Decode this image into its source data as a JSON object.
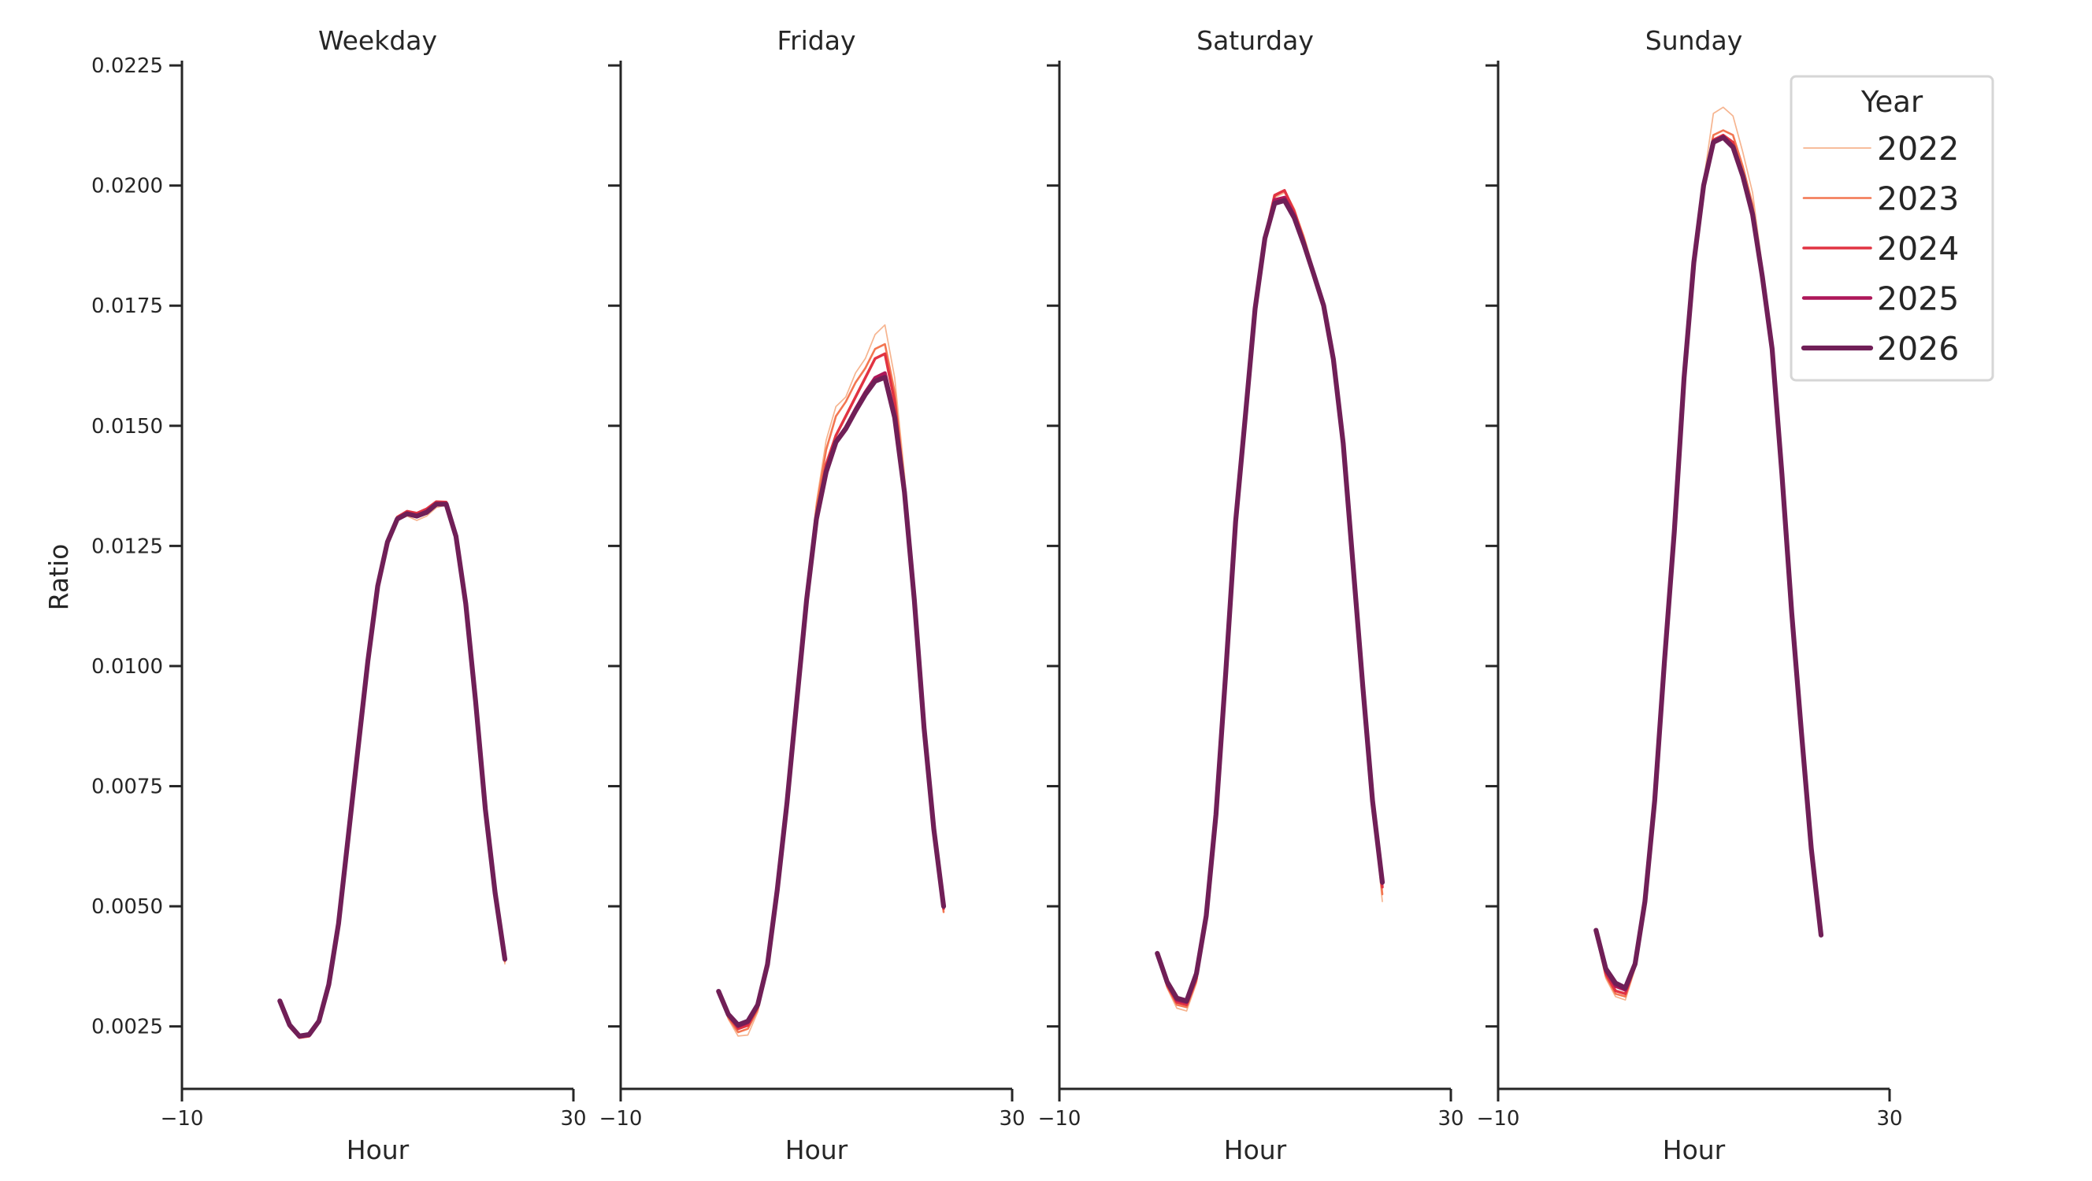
{
  "chart_data": {
    "type": "line",
    "ylabel": "Ratio",
    "xlabel": "Hour",
    "xlim": [
      -10,
      30
    ],
    "ylim": [
      0.0012,
      0.0226
    ],
    "xticks": [
      -10,
      30
    ],
    "xtick_labels": [
      "−10",
      "30"
    ],
    "yticks": [
      0.0025,
      0.005,
      0.0075,
      0.01,
      0.0125,
      0.015,
      0.0175,
      0.02,
      0.0225
    ],
    "ytick_labels": [
      "0.0025",
      "0.0050",
      "0.0075",
      "0.0100",
      "0.0125",
      "0.0150",
      "0.0175",
      "0.0200",
      "0.0225"
    ],
    "grid": false,
    "sharey": true,
    "legend": {
      "title": "Year",
      "placement": "top-right",
      "entries": [
        "2022",
        "2023",
        "2024",
        "2025",
        "2026"
      ]
    },
    "series_colors": {
      "2022": "#f6b48f",
      "2023": "#f37651",
      "2024": "#e13342",
      "2025": "#ad1759",
      "2026": "#701f57"
    },
    "x": [
      0,
      1,
      2,
      3,
      4,
      5,
      6,
      7,
      8,
      9,
      10,
      11,
      12,
      13,
      14,
      15,
      16,
      17,
      18,
      19,
      20,
      21,
      22,
      23
    ],
    "panels": [
      {
        "title": "Weekday",
        "series": [
          {
            "name": "2022",
            "values": [
              0.003,
              0.0025,
              0.00228,
              0.0023,
              0.0026,
              0.00338,
              0.00466,
              0.00648,
              0.0083,
              0.0101,
              0.01165,
              0.01257,
              0.01303,
              0.01312,
              0.01303,
              0.01312,
              0.0133,
              0.01335,
              0.01272,
              0.01132,
              0.0093,
              0.00705,
              0.0053,
              0.0038
            ]
          },
          {
            "name": "2023",
            "values": [
              0.003,
              0.00248,
              0.00226,
              0.00229,
              0.00259,
              0.00337,
              0.00465,
              0.00647,
              0.0083,
              0.01011,
              0.01166,
              0.01259,
              0.01308,
              0.0132,
              0.01316,
              0.01325,
              0.0134,
              0.0134,
              0.01273,
              0.01131,
              0.00928,
              0.00703,
              0.00528,
              0.00385
            ]
          },
          {
            "name": "2024",
            "values": [
              0.00302,
              0.0025,
              0.00227,
              0.0023,
              0.0026,
              0.00337,
              0.00465,
              0.00647,
              0.0083,
              0.01011,
              0.01166,
              0.0126,
              0.0131,
              0.01322,
              0.01318,
              0.01327,
              0.01342,
              0.01341,
              0.01272,
              0.01131,
              0.00928,
              0.00703,
              0.00528,
              0.00388
            ]
          },
          {
            "name": "2025",
            "values": [
              0.00303,
              0.00252,
              0.00229,
              0.00232,
              0.00261,
              0.00337,
              0.00464,
              0.00646,
              0.00829,
              0.01011,
              0.01166,
              0.01259,
              0.01307,
              0.01318,
              0.01313,
              0.01322,
              0.01338,
              0.01338,
              0.0127,
              0.0113,
              0.00927,
              0.00702,
              0.00528,
              0.0039
            ]
          },
          {
            "name": "2026",
            "values": [
              0.00303,
              0.00253,
              0.0023,
              0.00233,
              0.00261,
              0.00337,
              0.00464,
              0.00646,
              0.00829,
              0.01011,
              0.01166,
              0.01258,
              0.01306,
              0.01317,
              0.01312,
              0.0132,
              0.01337,
              0.01337,
              0.0127,
              0.0113,
              0.00927,
              0.00702,
              0.00528,
              0.0039
            ]
          }
        ]
      },
      {
        "title": "Friday",
        "series": [
          {
            "name": "2022",
            "values": [
              0.0032,
              0.00265,
              0.0023,
              0.00232,
              0.0028,
              0.0037,
              0.0053,
              0.00716,
              0.0093,
              0.0115,
              0.0134,
              0.0147,
              0.0154,
              0.0156,
              0.0161,
              0.0164,
              0.0169,
              0.0171,
              0.016,
              0.014,
              0.0115,
              0.00875,
              0.0066,
              0.0049
            ]
          },
          {
            "name": "2023",
            "values": [
              0.0032,
              0.00268,
              0.00238,
              0.00245,
              0.00285,
              0.00373,
              0.00532,
              0.00716,
              0.0093,
              0.01148,
              0.0133,
              0.0145,
              0.0152,
              0.0155,
              0.0159,
              0.0162,
              0.0166,
              0.0167,
              0.0157,
              0.0138,
              0.01145,
              0.00873,
              0.0066,
              0.00488
            ]
          },
          {
            "name": "2024",
            "values": [
              0.00322,
              0.00272,
              0.00245,
              0.00252,
              0.0029,
              0.00376,
              0.00533,
              0.00716,
              0.00928,
              0.01142,
              0.01315,
              0.0142,
              0.0148,
              0.0152,
              0.0156,
              0.016,
              0.0164,
              0.0165,
              0.0155,
              0.0137,
              0.0114,
              0.00872,
              0.0066,
              0.00495
            ]
          },
          {
            "name": "2025",
            "values": [
              0.00323,
              0.00274,
              0.0025,
              0.00258,
              0.00293,
              0.00378,
              0.00534,
              0.00716,
              0.00927,
              0.01139,
              0.01307,
              0.01406,
              0.01468,
              0.01497,
              0.01535,
              0.0157,
              0.016,
              0.0161,
              0.01522,
              0.01364,
              0.01139,
              0.00871,
              0.0066,
              0.005
            ]
          },
          {
            "name": "2026",
            "values": [
              0.00323,
              0.00275,
              0.00253,
              0.00261,
              0.00295,
              0.00379,
              0.00534,
              0.00716,
              0.00927,
              0.01138,
              0.01306,
              0.01404,
              0.01466,
              0.01494,
              0.01531,
              0.01565,
              0.01593,
              0.01601,
              0.01517,
              0.01362,
              0.01138,
              0.00871,
              0.0066,
              0.005
            ]
          }
        ]
      },
      {
        "title": "Saturday",
        "series": [
          {
            "name": "2022",
            "values": [
              0.004,
              0.0033,
              0.00288,
              0.00282,
              0.0034,
              0.0047,
              0.00688,
              0.00986,
              0.013,
              0.01522,
              0.01746,
              0.01893,
              0.01975,
              0.01985,
              0.0195,
              0.01895,
              0.01825,
              0.01752,
              0.01638,
              0.01462,
              0.0121,
              0.00955,
              0.00715,
              0.0051
            ]
          },
          {
            "name": "2023",
            "values": [
              0.004,
              0.00333,
              0.00295,
              0.0029,
              0.00345,
              0.00473,
              0.00689,
              0.00986,
              0.013,
              0.01521,
              0.01745,
              0.01893,
              0.01978,
              0.0199,
              0.0195,
              0.0189,
              0.0182,
              0.01751,
              0.01638,
              0.01463,
              0.0121,
              0.00956,
              0.00716,
              0.00525
            ]
          },
          {
            "name": "2024",
            "values": [
              0.00401,
              0.00337,
              0.003,
              0.00295,
              0.0035,
              0.00476,
              0.0069,
              0.00986,
              0.013,
              0.01521,
              0.01745,
              0.01892,
              0.0198,
              0.0199,
              0.01945,
              0.01885,
              0.01818,
              0.01751,
              0.01638,
              0.01463,
              0.01211,
              0.00957,
              0.00718,
              0.0054
            ]
          },
          {
            "name": "2025",
            "values": [
              0.00402,
              0.0034,
              0.00305,
              0.003,
              0.00356,
              0.00478,
              0.00691,
              0.00986,
              0.013,
              0.0152,
              0.01744,
              0.01891,
              0.0197,
              0.01975,
              0.01938,
              0.0188,
              0.01816,
              0.0175,
              0.01638,
              0.01464,
              0.01211,
              0.00958,
              0.00719,
              0.00548
            ]
          },
          {
            "name": "2026",
            "values": [
              0.00402,
              0.00343,
              0.00309,
              0.00303,
              0.0036,
              0.0048,
              0.00691,
              0.00986,
              0.013,
              0.0152,
              0.01744,
              0.0189,
              0.01963,
              0.01969,
              0.01933,
              0.01877,
              0.01815,
              0.0175,
              0.01638,
              0.01464,
              0.01211,
              0.00958,
              0.00719,
              0.0055
            ]
          }
        ]
      },
      {
        "title": "Sunday",
        "series": [
          {
            "name": "2022",
            "values": [
              0.0044,
              0.0035,
              0.00312,
              0.00305,
              0.0037,
              0.00505,
              0.0072,
              0.0101,
              0.0128,
              0.016,
              0.01845,
              0.0201,
              0.0215,
              0.02163,
              0.02145,
              0.0207,
              0.01985,
              0.0183,
              0.0167,
              0.01405,
              0.01112,
              0.00862,
              0.0062,
              0.0044
            ]
          },
          {
            "name": "2023",
            "values": [
              0.00443,
              0.00355,
              0.00318,
              0.00312,
              0.00374,
              0.00507,
              0.0072,
              0.0101,
              0.0128,
              0.016,
              0.01843,
              0.02005,
              0.02105,
              0.02115,
              0.02105,
              0.0204,
              0.0196,
              0.0182,
              0.01665,
              0.01402,
              0.01111,
              0.00861,
              0.0062,
              0.0044
            ]
          },
          {
            "name": "2024",
            "values": [
              0.00445,
              0.0036,
              0.00324,
              0.00318,
              0.00377,
              0.00509,
              0.0072,
              0.0101,
              0.0128,
              0.016,
              0.01841,
              0.02002,
              0.02095,
              0.02105,
              0.0209,
              0.02025,
              0.01945,
              0.01812,
              0.01662,
              0.01401,
              0.0111,
              0.0086,
              0.0062,
              0.0044
            ]
          },
          {
            "name": "2025",
            "values": [
              0.00448,
              0.00366,
              0.00334,
              0.00326,
              0.00379,
              0.0051,
              0.0072,
              0.0101,
              0.0128,
              0.016,
              0.0184,
              0.02001,
              0.02092,
              0.02102,
              0.02082,
              0.02021,
              0.01942,
              0.0181,
              0.0166,
              0.014,
              0.0111,
              0.0086,
              0.0062,
              0.0044
            ]
          },
          {
            "name": "2026",
            "values": [
              0.0045,
              0.0037,
              0.0034,
              0.0033,
              0.0038,
              0.0051,
              0.0072,
              0.0101,
              0.0128,
              0.016,
              0.0184,
              0.02,
              0.0209,
              0.021,
              0.0208,
              0.0202,
              0.0194,
              0.0181,
              0.0166,
              0.014,
              0.0111,
              0.0086,
              0.0062,
              0.0044
            ]
          }
        ]
      }
    ]
  }
}
